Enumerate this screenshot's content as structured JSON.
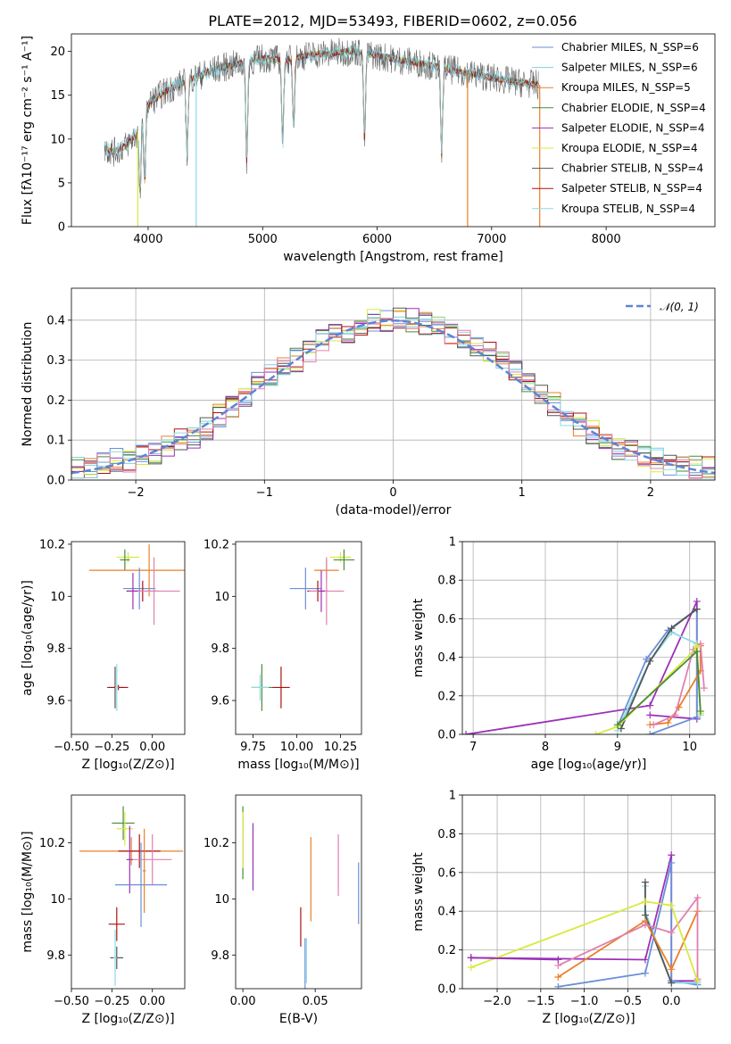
{
  "colors": {
    "chabrier_miles": "#6a8fd8",
    "salpeter_miles": "#7fd0d6",
    "kroupa_miles": "#e8802a",
    "chabrier_elodie": "#4a8a3a",
    "salpeter_elodie": "#9b30b8",
    "kroupa_elodie": "#d8ea40",
    "chabrier_stelib": "#555555",
    "salpeter_stelib": "#b01010",
    "kroupa_stelib": "#8adce6",
    "pink": "#e080b0",
    "normal": "#5b86d6"
  },
  "chart_data": [
    {
      "id": "spectrum",
      "type": "line",
      "title": "PLATE=2012, MJD=53493, FIBERID=0602, z=0.056",
      "xlabel": "wavelength [Angstrom, rest frame]",
      "ylabel": "Flux [fλ10⁻¹⁷ erg cm⁻² s⁻¹ A⁻¹]",
      "xlim": [
        3330,
        8950
      ],
      "ylim": [
        0,
        22
      ],
      "xticks": [
        4000,
        5000,
        6000,
        7000,
        8000
      ],
      "yticks": [
        0,
        5,
        10,
        15,
        20
      ],
      "legend_position": "right",
      "legend": [
        {
          "name": "Chabrier MILES, N_SSP=6",
          "color": "#6a8fd8"
        },
        {
          "name": "Salpeter MILES, N_SSP=6",
          "color": "#7fd0d6"
        },
        {
          "name": "Kroupa MILES, N_SSP=5",
          "color": "#e8802a"
        },
        {
          "name": "Chabrier ELODIE, N_SSP=4",
          "color": "#4a8a3a"
        },
        {
          "name": "Salpeter ELODIE, N_SSP=4",
          "color": "#9b30b8"
        },
        {
          "name": "Kroupa ELODIE, N_SSP=4",
          "color": "#d8ea40"
        },
        {
          "name": "Chabrier STELIB, N_SSP=4",
          "color": "#555555"
        },
        {
          "name": "Salpeter STELIB, N_SSP=4",
          "color": "#b01010"
        },
        {
          "name": "Kroupa STELIB, N_SSP=4",
          "color": "#8adce6"
        }
      ],
      "continuum": {
        "x": [
          3620,
          3700,
          3800,
          3900,
          3950,
          4000,
          4100,
          4200,
          4400,
          4600,
          4800,
          5000,
          5200,
          5400,
          5600,
          5800,
          6000,
          6200,
          6400,
          6600,
          6800,
          7000,
          7200,
          7400
        ],
        "y": [
          9.0,
          8.5,
          9.2,
          10.5,
          12.5,
          14.0,
          15.0,
          15.8,
          17.0,
          18.0,
          18.6,
          19.2,
          19.0,
          19.6,
          19.8,
          20.0,
          19.5,
          19.0,
          18.6,
          18.0,
          17.5,
          17.0,
          16.5,
          16.2
        ]
      },
      "dips_to_zero": [
        3910,
        4420,
        6790,
        7420
      ]
    },
    {
      "id": "residuals",
      "type": "bar",
      "xlabel": "(data-model)/error",
      "ylabel": "Normed distribution",
      "xlim": [
        -2.5,
        2.5
      ],
      "ylim": [
        0,
        0.48
      ],
      "xticks": [
        -2,
        -1,
        0,
        1,
        2
      ],
      "yticks": [
        0.0,
        0.1,
        0.2,
        0.3,
        0.4
      ],
      "grid": true,
      "legend_position": "top-right",
      "legend": [
        {
          "name": "𝒩(0, 1)",
          "color": "#5b86d6",
          "style": "dashed"
        }
      ],
      "bin_width": 0.1,
      "bin_start": -2.5,
      "reference_hist": [
        0.03,
        0.03,
        0.04,
        0.05,
        0.05,
        0.06,
        0.07,
        0.08,
        0.1,
        0.11,
        0.13,
        0.16,
        0.18,
        0.21,
        0.24,
        0.26,
        0.28,
        0.3,
        0.32,
        0.35,
        0.36,
        0.37,
        0.38,
        0.4,
        0.4,
        0.41,
        0.4,
        0.39,
        0.38,
        0.37,
        0.36,
        0.34,
        0.32,
        0.3,
        0.27,
        0.25,
        0.22,
        0.19,
        0.16,
        0.14,
        0.12,
        0.1,
        0.08,
        0.07,
        0.06,
        0.05,
        0.04,
        0.03,
        0.03,
        0.03
      ]
    },
    {
      "id": "age-vs-Z",
      "type": "scatter",
      "xlabel": "Z [log₁₀(Z/Z⊙)]",
      "ylabel": "age  [log₁₀(age/yr)]",
      "xlim": [
        -0.5,
        0.2
      ],
      "ylim": [
        9.47,
        10.21
      ],
      "xticks": [
        -0.5,
        -0.25,
        0.0
      ],
      "xticklabels": [
        "−0.50",
        "−0.25",
        "0.00"
      ],
      "yticks": [
        9.6,
        9.8,
        10.0,
        10.2
      ],
      "points": [
        {
          "x": -0.15,
          "y": 10.15,
          "xerr": 0.07,
          "yerr": 0.02,
          "color": "#d8ea40"
        },
        {
          "x": -0.17,
          "y": 10.14,
          "xerr": 0.03,
          "yerr": 0.04,
          "color": "#4a8a3a"
        },
        {
          "x": -0.02,
          "y": 10.1,
          "xerr": 0.37,
          "yerr": 0.1,
          "color": "#e8802a"
        },
        {
          "x": -0.08,
          "y": 10.03,
          "xerr": 0.1,
          "yerr": 0.08,
          "color": "#6a8fd8"
        },
        {
          "x": -0.06,
          "y": 10.02,
          "xerr": 0.1,
          "yerr": 0.04,
          "color": "#b01010"
        },
        {
          "x": 0.01,
          "y": 10.02,
          "xerr": 0.16,
          "yerr": 0.13,
          "color": "#e080b0"
        },
        {
          "x": -0.12,
          "y": 10.02,
          "xerr": 0.03,
          "yerr": 0.07,
          "color": "#9b30b8"
        },
        {
          "x": -0.23,
          "y": 9.65,
          "xerr": 0.05,
          "yerr": 0.08,
          "color": "#555555"
        },
        {
          "x": -0.21,
          "y": 9.65,
          "xerr": 0.06,
          "yerr": 0.01,
          "color": "#b01010"
        },
        {
          "x": -0.22,
          "y": 9.65,
          "xerr": 0.01,
          "yerr": 0.09,
          "color": "#8adce6"
        }
      ]
    },
    {
      "id": "age-vs-mass",
      "type": "scatter",
      "xlabel": "mass [log₁₀(M/M⊙)]",
      "ylabel": "",
      "xlim": [
        9.65,
        10.37
      ],
      "ylim": [
        9.47,
        10.21
      ],
      "xticks": [
        9.75,
        10.0,
        10.25
      ],
      "xticklabels": [
        "9.75",
        "10.00",
        "10.25"
      ],
      "yticks": [
        9.6,
        9.8,
        10.0,
        10.2
      ],
      "points": [
        {
          "x": 10.25,
          "y": 10.15,
          "xerr": 0.06,
          "yerr": 0.02,
          "color": "#d8ea40"
        },
        {
          "x": 10.27,
          "y": 10.14,
          "xerr": 0.06,
          "yerr": 0.04,
          "color": "#4a8a3a"
        },
        {
          "x": 10.17,
          "y": 10.1,
          "xerr": 0.07,
          "yerr": 0.04,
          "color": "#e8802a"
        },
        {
          "x": 10.05,
          "y": 10.03,
          "xerr": 0.09,
          "yerr": 0.08,
          "color": "#6a8fd8"
        },
        {
          "x": 10.12,
          "y": 10.02,
          "xerr": 0.06,
          "yerr": 0.04,
          "color": "#b01010"
        },
        {
          "x": 10.17,
          "y": 10.02,
          "xerr": 0.1,
          "yerr": 0.13,
          "color": "#e080b0"
        },
        {
          "x": 10.14,
          "y": 10.02,
          "xerr": 0.02,
          "yerr": 0.08,
          "color": "#9b30b8"
        },
        {
          "x": 9.8,
          "y": 9.65,
          "xerr": 0.06,
          "yerr": 0.09,
          "color": "#4a8a3a"
        },
        {
          "x": 9.79,
          "y": 9.65,
          "xerr": 0.05,
          "yerr": 0.05,
          "color": "#8adce6"
        },
        {
          "x": 9.91,
          "y": 9.65,
          "xerr": 0.05,
          "yerr": 0.08,
          "color": "#b01010"
        }
      ]
    },
    {
      "id": "weight-vs-age",
      "type": "line",
      "xlabel": "age  [log₁₀(age/yr)]",
      "ylabel": "mass weight",
      "xlim": [
        6.85,
        10.35
      ],
      "ylim": [
        0,
        1
      ],
      "xticks": [
        7,
        8,
        9,
        10
      ],
      "yticks": [
        0.0,
        0.2,
        0.4,
        0.6,
        0.8,
        1.0
      ],
      "grid": true,
      "series": [
        {
          "color": "#9b30b8",
          "x": [
            6.9,
            9.45,
            10.1,
            10.1,
            9.45
          ],
          "y": [
            0.0,
            0.15,
            0.69,
            0.08,
            0.1
          ]
        },
        {
          "color": "#6a8fd8",
          "x": [
            9.0,
            9.4,
            9.7,
            10.1,
            10.1,
            9.45
          ],
          "y": [
            0.04,
            0.39,
            0.54,
            0.65,
            0.09,
            0.0
          ]
        },
        {
          "color": "#8adce6",
          "x": [
            9.0,
            9.45,
            9.75,
            10.1,
            10.15
          ],
          "y": [
            0.02,
            0.38,
            0.53,
            0.47,
            0.1
          ]
        },
        {
          "color": "#555555",
          "x": [
            9.05,
            9.45,
            9.75,
            10.1
          ],
          "y": [
            0.03,
            0.38,
            0.55,
            0.65
          ]
        },
        {
          "color": "#e8802a",
          "x": [
            9.45,
            9.7,
            9.85,
            10.15,
            10.15
          ],
          "y": [
            0.05,
            0.06,
            0.14,
            0.33,
            0.46
          ]
        },
        {
          "color": "#e080b0",
          "x": [
            9.5,
            9.8,
            10.05,
            10.15,
            10.2
          ],
          "y": [
            0.05,
            0.1,
            0.44,
            0.47,
            0.24
          ]
        },
        {
          "color": "#d8ea40",
          "x": [
            8.7,
            9.0,
            10.1,
            10.1,
            10.15
          ],
          "y": [
            0.0,
            0.04,
            0.45,
            0.46,
            0.11
          ]
        },
        {
          "color": "#4a8a3a",
          "x": [
            9.0,
            10.1,
            10.15
          ],
          "y": [
            0.05,
            0.43,
            0.12
          ]
        }
      ]
    },
    {
      "id": "mass-vs-Z",
      "type": "scatter",
      "xlabel": "Z [log₁₀(Z/Z⊙)]",
      "ylabel": "mass [log₁₀(M/M⊙)]",
      "xlim": [
        -0.5,
        0.2
      ],
      "ylim": [
        9.68,
        10.37
      ],
      "xticks": [
        -0.5,
        -0.25,
        0.0
      ],
      "xticklabels": [
        "−0.50",
        "−0.25",
        "0.00"
      ],
      "yticks": [
        9.8,
        10.0,
        10.2
      ],
      "points": [
        {
          "x": -0.18,
          "y": 10.27,
          "xerr": 0.07,
          "yerr": 0.06,
          "color": "#4a8a3a"
        },
        {
          "x": -0.17,
          "y": 10.25,
          "xerr": 0.05,
          "yerr": 0.06,
          "color": "#d8ea40"
        },
        {
          "x": -0.13,
          "y": 10.17,
          "xerr": 0.32,
          "yerr": 0.05,
          "color": "#e8802a"
        },
        {
          "x": -0.08,
          "y": 10.17,
          "xerr": 0.13,
          "yerr": 0.06,
          "color": "#b01010"
        },
        {
          "x": 0.0,
          "y": 10.14,
          "xerr": 0.12,
          "yerr": 0.09,
          "color": "#e080b0"
        },
        {
          "x": -0.14,
          "y": 10.14,
          "xerr": 0.02,
          "yerr": 0.12,
          "color": "#9b30b8"
        },
        {
          "x": -0.07,
          "y": 10.05,
          "xerr": 0.16,
          "yerr": 0.15,
          "color": "#6a8fd8"
        },
        {
          "x": -0.05,
          "y": 10.1,
          "xerr": 0.01,
          "yerr": 0.15,
          "color": "#e8802a"
        },
        {
          "x": -0.22,
          "y": 9.91,
          "xerr": 0.05,
          "yerr": 0.06,
          "color": "#b01010"
        },
        {
          "x": -0.22,
          "y": 9.79,
          "xerr": 0.04,
          "yerr": 0.04,
          "color": "#555555"
        },
        {
          "x": -0.23,
          "y": 9.79,
          "xerr": 0.01,
          "yerr": 0.1,
          "color": "#8adce6"
        }
      ]
    },
    {
      "id": "mass-vs-ebv",
      "type": "scatter",
      "xlabel": "E(B-V)",
      "ylabel": "",
      "xlim": [
        -0.005,
        0.082
      ],
      "ylim": [
        9.68,
        10.37
      ],
      "xticks": [
        0.0,
        0.05
      ],
      "xticklabels": [
        "0.00",
        "0.05"
      ],
      "yticks": [
        9.8,
        10.0,
        10.2
      ],
      "points": [
        {
          "x": 0.0,
          "y": 10.2,
          "xerr": 0,
          "yerr": 0.13,
          "color": "#4a8a3a"
        },
        {
          "x": 0.0,
          "y": 10.21,
          "xerr": 0,
          "yerr": 0.1,
          "color": "#d8ea40"
        },
        {
          "x": 0.007,
          "y": 10.15,
          "xerr": 0,
          "yerr": 0.12,
          "color": "#9b30b8"
        },
        {
          "x": 0.04,
          "y": 9.9,
          "xerr": 0,
          "yerr": 0.07,
          "color": "#b01010"
        },
        {
          "x": 0.043,
          "y": 9.77,
          "xerr": 0,
          "yerr": 0.09,
          "color": "#6a8fd8"
        },
        {
          "x": 0.044,
          "y": 9.78,
          "xerr": 0,
          "yerr": 0.08,
          "color": "#8adce6"
        },
        {
          "x": 0.047,
          "y": 10.07,
          "xerr": 0,
          "yerr": 0.15,
          "color": "#e8802a"
        },
        {
          "x": 0.066,
          "y": 10.12,
          "xerr": 0,
          "yerr": 0.11,
          "color": "#e080b0"
        },
        {
          "x": 0.08,
          "y": 10.02,
          "xerr": 0,
          "yerr": 0.11,
          "color": "#6a8fd8"
        }
      ]
    },
    {
      "id": "weight-vs-Z",
      "type": "line",
      "xlabel": "Z [log₁₀(Z/Z⊙)]",
      "ylabel": "mass weight",
      "xlim": [
        -2.4,
        0.5
      ],
      "ylim": [
        0,
        1
      ],
      "xticks": [
        -2.0,
        -1.5,
        -1.0,
        -0.5,
        0.0
      ],
      "xticklabels": [
        "−2.0",
        "−1.5",
        "−1.0",
        "−0.5",
        "0.0"
      ],
      "yticks": [
        0.0,
        0.2,
        0.4,
        0.6,
        0.8,
        1.0
      ],
      "grid": true,
      "series": [
        {
          "color": "#9b30b8",
          "x": [
            -2.3,
            -0.3,
            0.0,
            0.0,
            0.3
          ],
          "y": [
            0.16,
            0.15,
            0.69,
            0.04,
            0.04
          ]
        },
        {
          "color": "#6a8fd8",
          "x": [
            -1.3,
            -0.3,
            0.0,
            0.0,
            0.3
          ],
          "y": [
            0.01,
            0.08,
            0.65,
            0.04,
            0.02
          ]
        },
        {
          "color": "#8adce6",
          "x": [
            -0.3,
            -0.3,
            0.0,
            0.3
          ],
          "y": [
            0.53,
            0.4,
            0.03,
            0.03
          ]
        },
        {
          "color": "#555555",
          "x": [
            -0.3,
            -0.3,
            0.0
          ],
          "y": [
            0.55,
            0.38,
            0.03
          ]
        },
        {
          "color": "#e8802a",
          "x": [
            -1.3,
            -0.3,
            0.0,
            0.3
          ],
          "y": [
            0.06,
            0.35,
            0.1,
            0.4
          ]
        },
        {
          "color": "#e080b0",
          "x": [
            -1.3,
            -0.3,
            0.0,
            0.3,
            0.3
          ],
          "y": [
            0.12,
            0.33,
            0.29,
            0.47,
            0.05
          ]
        },
        {
          "color": "#d8ea40",
          "x": [
            -2.3,
            -0.3,
            0.0,
            0.3
          ],
          "y": [
            0.11,
            0.45,
            0.43,
            0.04
          ]
        },
        {
          "color": "#9b30b8",
          "x": [
            -1.3,
            -2.3
          ],
          "y": [
            0.15,
            0.16
          ]
        }
      ]
    }
  ]
}
